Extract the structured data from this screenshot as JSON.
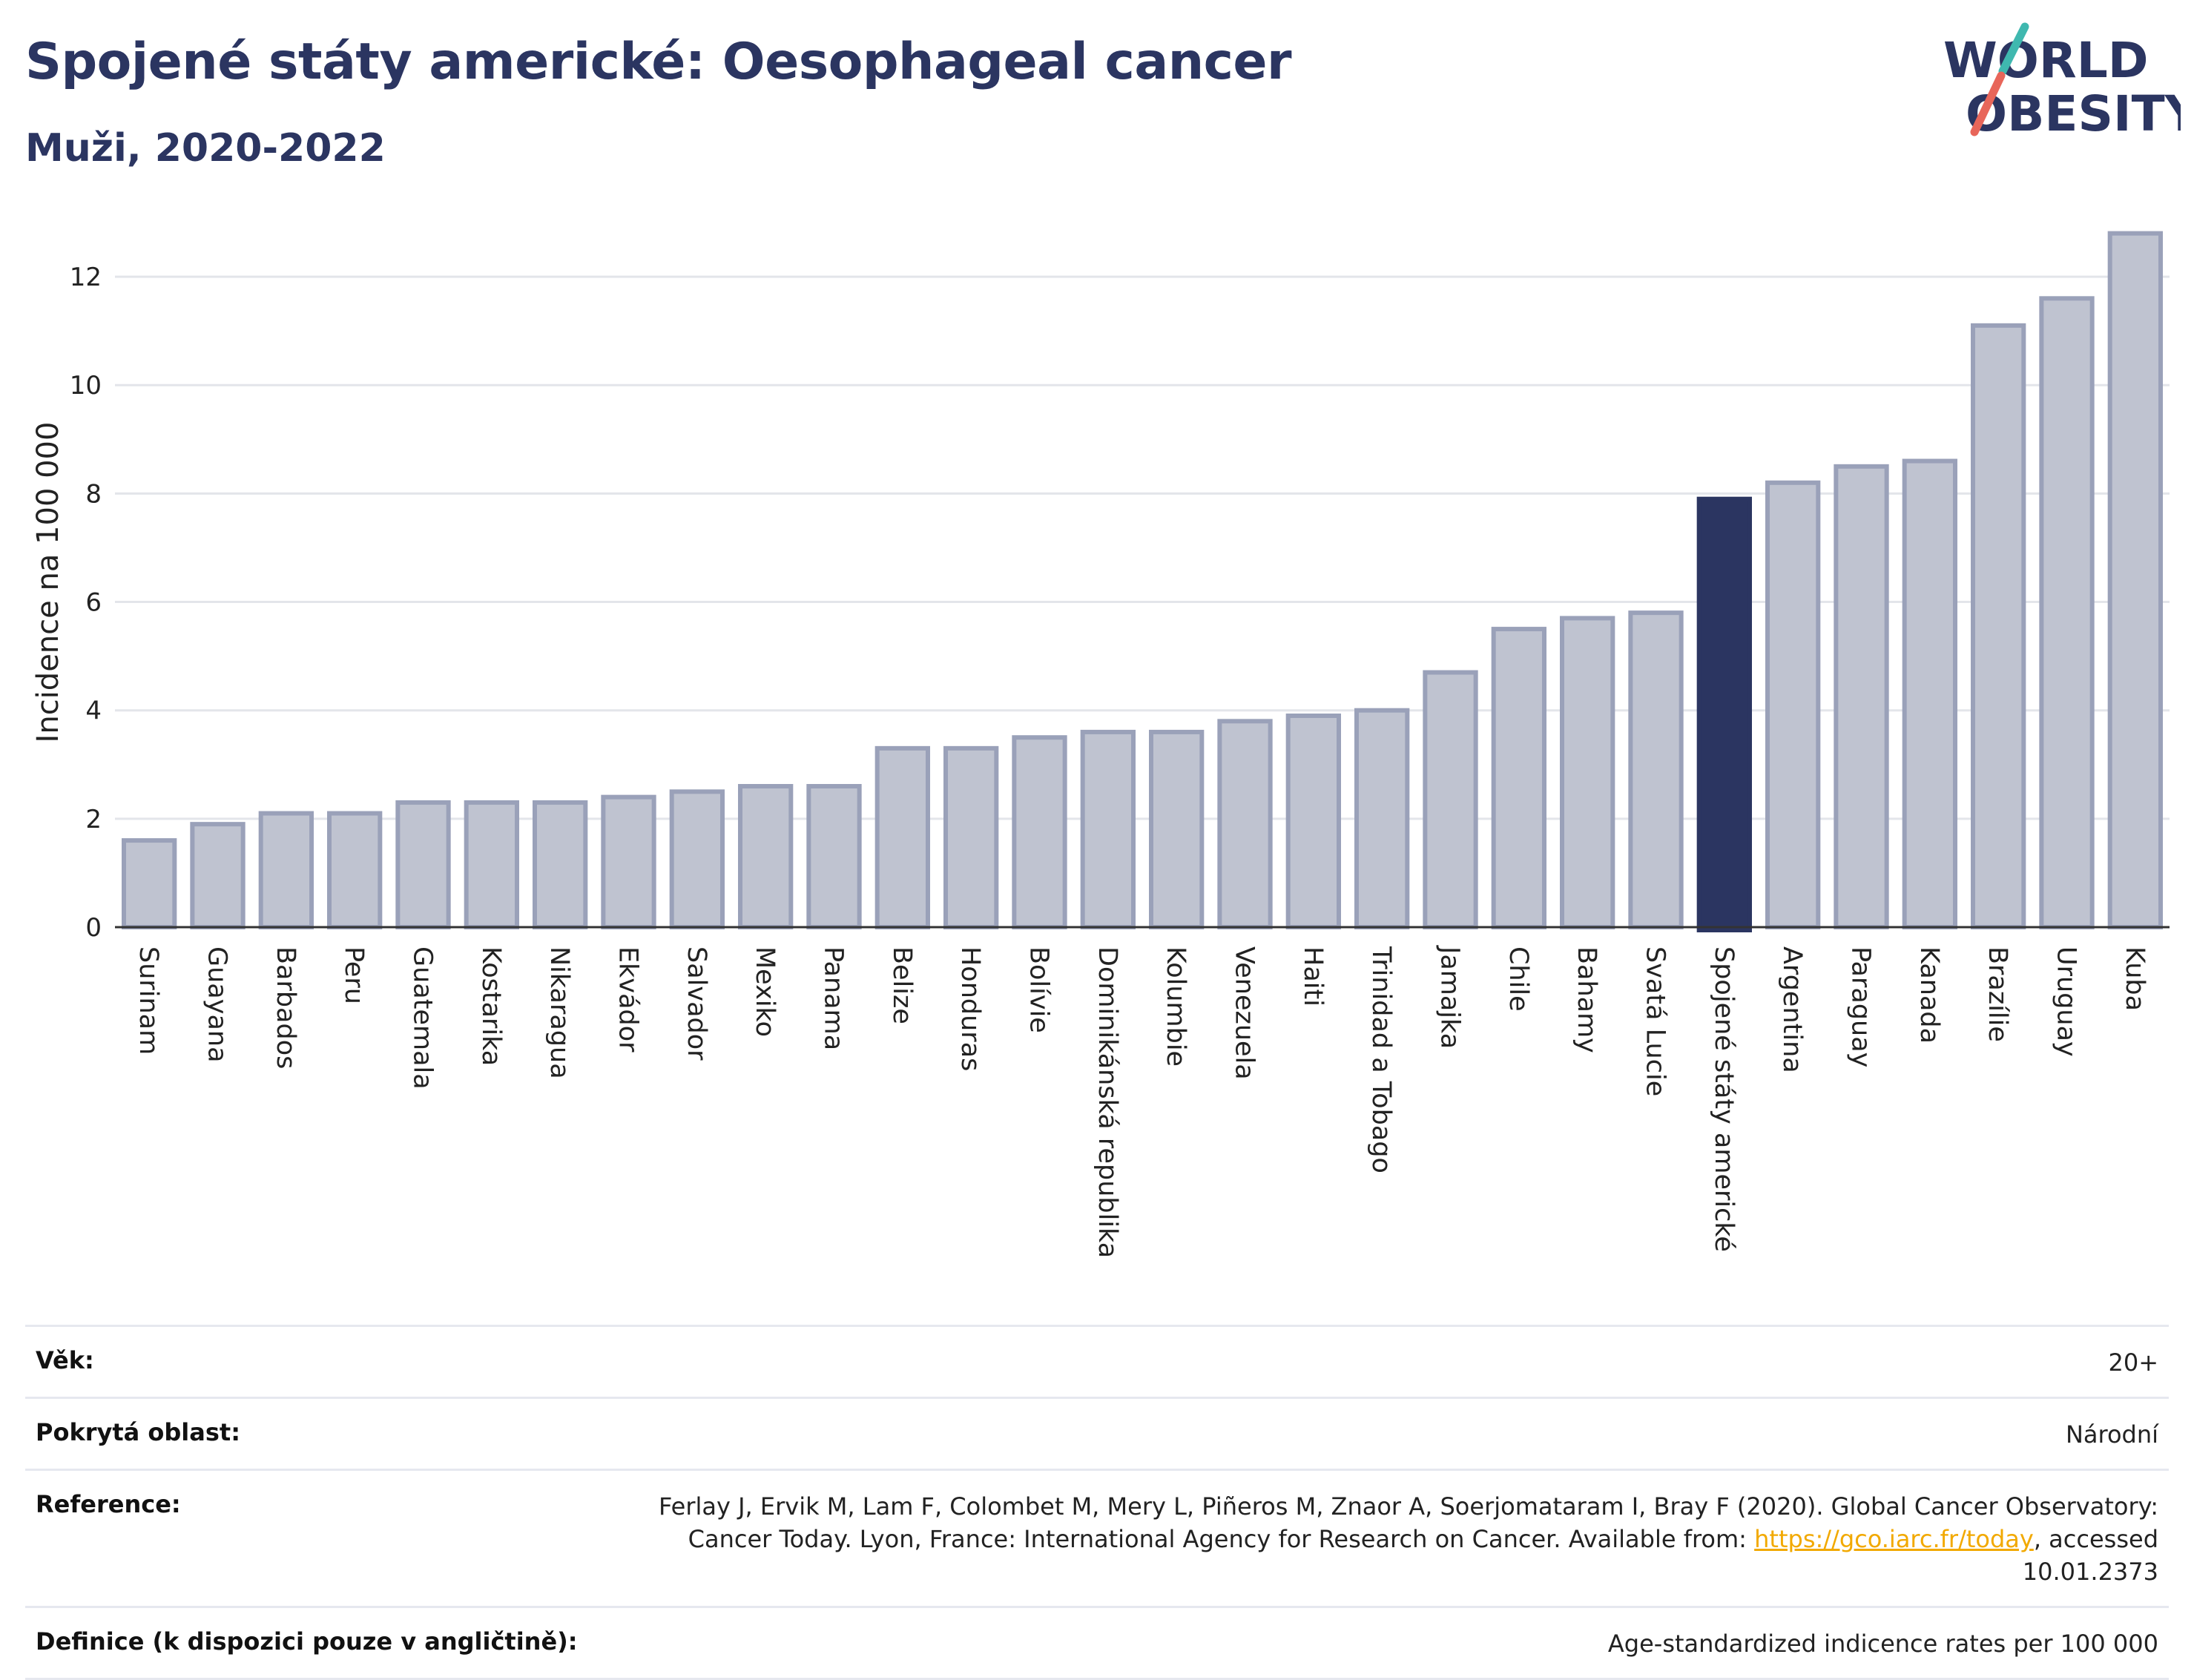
{
  "header": {
    "title": "Spojené státy americké: Oesophageal cancer",
    "subtitle": "Muži, 2020-2022"
  },
  "logo": {
    "line1": "WORLD",
    "line2": "OBESITY",
    "colors": {
      "text": "#2b3561",
      "accent_teal": "#3fb8af",
      "accent_red": "#e8665a"
    }
  },
  "colors": {
    "bar_default": "#bfc3d0",
    "bar_default_border": "#9aa1b9",
    "bar_highlight": "#2b3561",
    "grid": "#e3e5ea",
    "axis": "#333333"
  },
  "chart_data": {
    "type": "bar",
    "ylabel": "Incidence na 100 000",
    "xlabel": "",
    "ylim": [
      0,
      13
    ],
    "yticks": [
      0,
      2,
      4,
      6,
      8,
      10,
      12
    ],
    "grid": true,
    "highlight": "Spojené státy americké",
    "categories": [
      "Surinam",
      "Guayana",
      "Barbados",
      "Peru",
      "Guatemala",
      "Kostarika",
      "Nikaragua",
      "Ekvádor",
      "Salvador",
      "Mexiko",
      "Panama",
      "Belize",
      "Honduras",
      "Bolívie",
      "Dominikánská republika",
      "Kolumbie",
      "Venezuela",
      "Haiti",
      "Trinidad a Tobago",
      "Jamajka",
      "Chile",
      "Bahamy",
      "Svatá Lucie",
      "Spojené státy americké",
      "Argentina",
      "Paraguay",
      "Kanada",
      "Brazílie",
      "Uruguay",
      "Kuba"
    ],
    "values": [
      1.6,
      1.9,
      2.1,
      2.1,
      2.3,
      2.3,
      2.3,
      2.4,
      2.5,
      2.6,
      2.6,
      3.3,
      3.3,
      3.5,
      3.6,
      3.6,
      3.8,
      3.9,
      4.0,
      4.7,
      5.5,
      5.7,
      5.8,
      7.9,
      8.2,
      8.5,
      8.6,
      11.1,
      11.6,
      12.8
    ]
  },
  "meta": {
    "age_label": "Věk:",
    "age_value": "20+",
    "coverage_label": "Pokrytá oblast:",
    "coverage_value": "Národní",
    "reference_label": "Reference:",
    "reference_text": "Ferlay J, Ervik M, Lam F, Colombet M, Mery L, Piñeros M, Znaor A, Soerjomataram I, Bray F (2020). Global Cancer Observatory: Cancer Today. Lyon, France: International Agency for Research on Cancer. Available from:",
    "reference_link": "https://gco.iarc.fr/today",
    "reference_suffix": ", accessed 10.01.2373",
    "definition_label": "Definice (k dispozici pouze v angličtině):",
    "definition_value": "Age-standardized indicence rates per 100 000"
  }
}
